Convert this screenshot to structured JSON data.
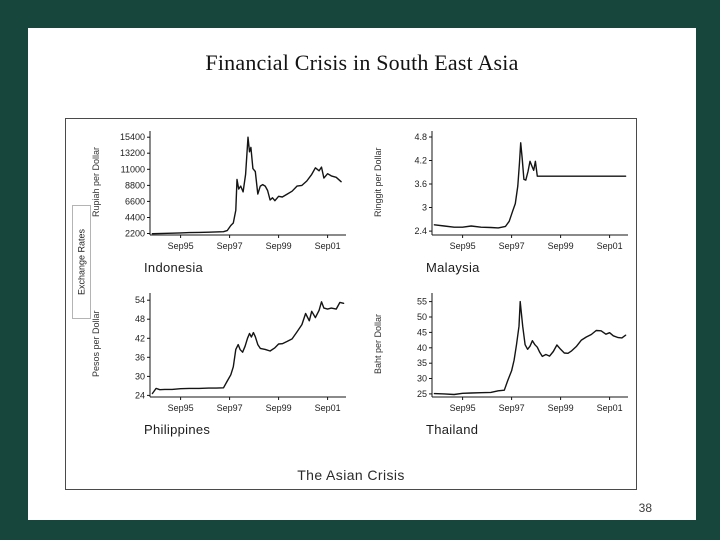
{
  "slide": {
    "title": "Financial Crisis in South East Asia",
    "page_number": "38"
  },
  "panel": {
    "side_label": "Exchange Rates",
    "caption": "The Asian Crisis"
  },
  "colors": {
    "background": "#16463c",
    "line": "#141414"
  },
  "chart_data": [
    {
      "type": "line",
      "country": "Indonesia",
      "ylabel": "Rupiah per Dollar",
      "yticks": [
        2200,
        4400,
        6600,
        8800,
        11000,
        13200,
        15400
      ],
      "xticks": [
        "Sep95",
        "Sep97",
        "Sep99",
        "Sep01"
      ],
      "xtick_values": [
        1995.75,
        1997.75,
        1999.75,
        2001.75
      ],
      "xlim": [
        1994.5,
        2002.5
      ],
      "ylim": [
        2000,
        15700
      ],
      "grid": false,
      "x": [
        1994.6,
        1995.0,
        1995.4,
        1995.75,
        1996.1,
        1996.5,
        1996.9,
        1997.2,
        1997.5,
        1997.65,
        1997.8,
        1997.9,
        1998.0,
        1998.05,
        1998.12,
        1998.2,
        1998.3,
        1998.4,
        1998.5,
        1998.56,
        1998.62,
        1998.7,
        1998.8,
        1998.9,
        1999.0,
        1999.1,
        1999.2,
        1999.3,
        1999.4,
        1999.5,
        1999.6,
        1999.75,
        1999.9,
        2000.1,
        2000.3,
        2000.5,
        2000.7,
        2000.9,
        2001.1,
        2001.25,
        2001.4,
        2001.5,
        2001.6,
        2001.75,
        2001.9,
        2002.1,
        2002.3
      ],
      "y": [
        2180,
        2220,
        2250,
        2290,
        2330,
        2360,
        2380,
        2420,
        2450,
        2600,
        3300,
        3650,
        5400,
        9600,
        8300,
        8700,
        7900,
        10300,
        15400,
        13400,
        14000,
        11100,
        10700,
        7600,
        8700,
        8900,
        8700,
        8100,
        6800,
        7100,
        6700,
        7300,
        7200,
        7600,
        8000,
        8700,
        8800,
        9400,
        10300,
        11200,
        10800,
        11300,
        9800,
        10400,
        10100,
        9900,
        9300
      ]
    },
    {
      "type": "line",
      "country": "Malaysia",
      "ylabel": "Ringgit per Dollar",
      "yticks": [
        2.4,
        3,
        3.6,
        4.2,
        4.8
      ],
      "xticks": [
        "Sep95",
        "Sep97",
        "Sep99",
        "Sep01"
      ],
      "xtick_values": [
        1995.75,
        1997.75,
        1999.75,
        2001.75
      ],
      "xlim": [
        1994.5,
        2002.5
      ],
      "ylim": [
        2.3,
        4.85
      ],
      "grid": false,
      "x": [
        1994.6,
        1995.0,
        1995.4,
        1995.75,
        1996.1,
        1996.5,
        1996.9,
        1997.2,
        1997.5,
        1997.65,
        1997.8,
        1997.9,
        1998.0,
        1998.07,
        1998.12,
        1998.18,
        1998.25,
        1998.33,
        1998.42,
        1998.5,
        1998.58,
        1998.65,
        1998.72,
        1998.8,
        1999.2,
        1999.8,
        2000.4,
        2001.0,
        2001.6,
        2002.2,
        2002.4
      ],
      "y": [
        2.56,
        2.53,
        2.5,
        2.5,
        2.53,
        2.5,
        2.49,
        2.48,
        2.52,
        2.65,
        2.92,
        3.1,
        3.55,
        4.15,
        4.65,
        4.25,
        3.72,
        3.7,
        3.92,
        4.18,
        4.05,
        3.95,
        4.18,
        3.8,
        3.8,
        3.8,
        3.8,
        3.8,
        3.8,
        3.8,
        3.8
      ]
    },
    {
      "type": "line",
      "country": "Philippines",
      "ylabel": "Pesos per Dollar",
      "yticks": [
        24,
        30,
        36,
        42,
        48,
        54
      ],
      "xticks": [
        "Sep95",
        "Sep97",
        "Sep99",
        "Sep01"
      ],
      "xtick_values": [
        1995.75,
        1997.75,
        1999.75,
        2001.75
      ],
      "xlim": [
        1994.5,
        2002.5
      ],
      "ylim": [
        23.5,
        55
      ],
      "grid": false,
      "x": [
        1994.6,
        1994.75,
        1994.9,
        1995.1,
        1995.4,
        1995.75,
        1996.1,
        1996.5,
        1996.9,
        1997.2,
        1997.5,
        1997.65,
        1997.8,
        1997.9,
        1998.0,
        1998.1,
        1998.18,
        1998.28,
        1998.38,
        1998.48,
        1998.56,
        1998.64,
        1998.72,
        1998.8,
        1998.9,
        1999.0,
        1999.2,
        1999.4,
        1999.6,
        1999.75,
        1999.9,
        2000.1,
        2000.3,
        2000.5,
        2000.7,
        2000.85,
        2001.0,
        2001.1,
        2001.25,
        2001.4,
        2001.5,
        2001.6,
        2001.75,
        2001.9,
        2002.1,
        2002.25,
        2002.4
      ],
      "y": [
        24.6,
        26.2,
        25.8,
        25.9,
        25.9,
        26.1,
        26.2,
        26.2,
        26.3,
        26.3,
        26.4,
        28.5,
        30.5,
        33.0,
        38.5,
        40.0,
        38.4,
        37.6,
        39.5,
        42.0,
        43.5,
        42.4,
        43.8,
        42.5,
        40.0,
        38.8,
        38.5,
        38.0,
        39.0,
        40.2,
        40.3,
        41.0,
        41.8,
        44.0,
        46.3,
        49.8,
        47.5,
        50.5,
        48.5,
        50.8,
        53.5,
        51.5,
        51.2,
        51.5,
        51.2,
        53.3,
        53.0
      ]
    },
    {
      "type": "line",
      "country": "Thailand",
      "ylabel": "Baht per Dollar",
      "yticks": [
        25,
        30,
        35,
        40,
        45,
        50,
        55
      ],
      "xticks": [
        "Sep95",
        "Sep97",
        "Sep99",
        "Sep01"
      ],
      "xtick_values": [
        1995.75,
        1997.75,
        1999.75,
        2001.75
      ],
      "xlim": [
        1994.5,
        2002.5
      ],
      "ylim": [
        24,
        56.5
      ],
      "grid": false,
      "x": [
        1994.6,
        1995.0,
        1995.4,
        1995.75,
        1996.1,
        1996.5,
        1996.9,
        1997.2,
        1997.45,
        1997.6,
        1997.75,
        1997.85,
        1997.95,
        1998.05,
        1998.1,
        1998.2,
        1998.3,
        1998.4,
        1998.5,
        1998.6,
        1998.7,
        1998.8,
        1998.9,
        1999.0,
        1999.15,
        1999.3,
        1999.45,
        1999.6,
        1999.75,
        1999.9,
        2000.05,
        2000.2,
        2000.4,
        2000.6,
        2000.8,
        2001.0,
        2001.2,
        2001.4,
        2001.6,
        2001.75,
        2001.9,
        2002.1,
        2002.25,
        2002.4
      ],
      "y": [
        25.1,
        25.0,
        24.8,
        25.2,
        25.3,
        25.4,
        25.5,
        26.0,
        26.2,
        29.5,
        32.5,
        36.0,
        41.0,
        47.0,
        55.0,
        47.0,
        41.0,
        39.5,
        40.5,
        42.3,
        41.0,
        40.2,
        38.5,
        37.2,
        37.8,
        37.3,
        38.8,
        40.9,
        39.5,
        38.3,
        38.2,
        39.0,
        40.5,
        42.5,
        43.5,
        44.3,
        45.6,
        45.5,
        44.4,
        44.9,
        43.9,
        43.3,
        43.2,
        44.1
      ]
    }
  ]
}
